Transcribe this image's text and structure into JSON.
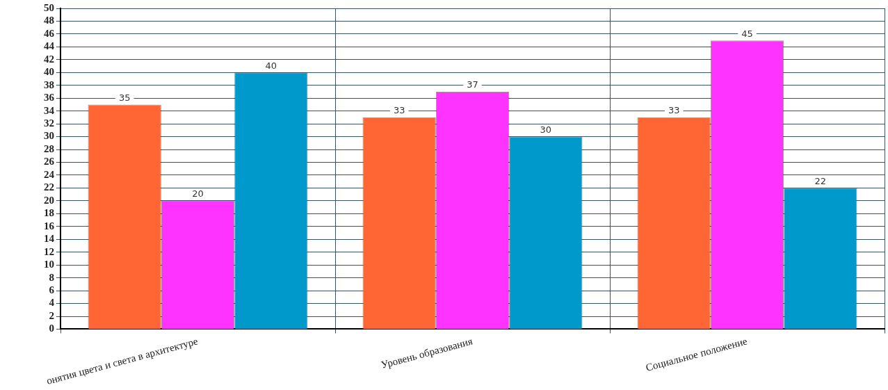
{
  "chart_data": {
    "type": "bar",
    "categories": [
      "онятия цвета и света в архитектуре",
      "Уровень образования",
      "Социальное положение"
    ],
    "series": [
      {
        "color": "#ff6633",
        "values": [
          35,
          33,
          33
        ]
      },
      {
        "color": "#ff33ff",
        "values": [
          20,
          37,
          45
        ]
      },
      {
        "color": "#0099cc",
        "values": [
          40,
          30,
          22
        ]
      }
    ],
    "ylim": [
      0,
      50
    ],
    "yticks": [
      0,
      2,
      4,
      6,
      8,
      10,
      12,
      14,
      16,
      18,
      20,
      22,
      24,
      26,
      28,
      30,
      32,
      34,
      36,
      38,
      40,
      42,
      44,
      46,
      48,
      50
    ],
    "grid": true,
    "legend": false,
    "data_labels": true
  }
}
